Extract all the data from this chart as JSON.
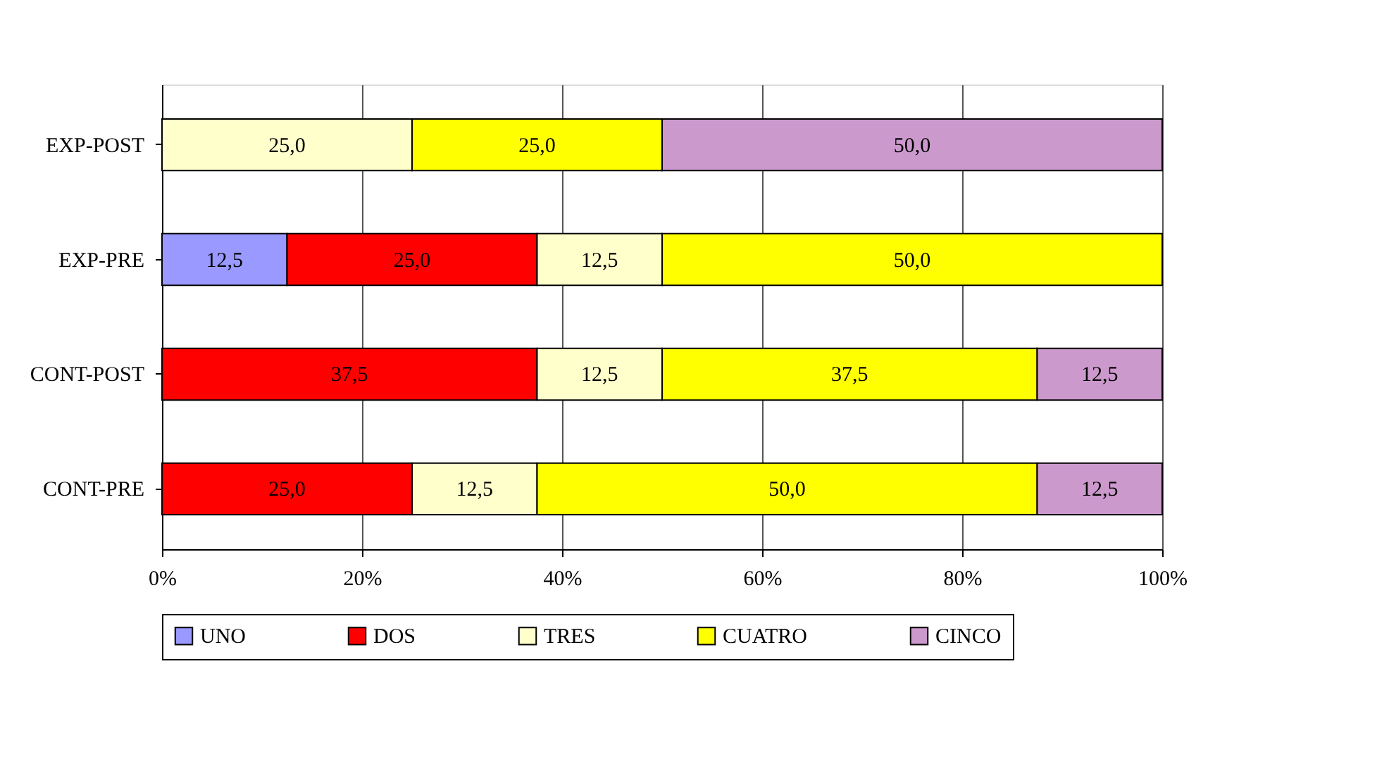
{
  "chart_data": {
    "type": "bar",
    "orientation": "horizontal",
    "stacked": true,
    "categories": [
      "EXP-POST",
      "EXP-PRE",
      "CONT-POST",
      "CONT-PRE"
    ],
    "series": [
      {
        "name": "UNO",
        "color": "#9999ff",
        "values": [
          null,
          12.5,
          null,
          null
        ],
        "value_labels": [
          null,
          "12,5",
          null,
          null
        ]
      },
      {
        "name": "DOS",
        "color": "#ff0000",
        "values": [
          null,
          25.0,
          37.5,
          25.0
        ],
        "value_labels": [
          null,
          "25,0",
          "37,5",
          "25,0"
        ]
      },
      {
        "name": "TRES",
        "color": "#ffffcc",
        "values": [
          25.0,
          12.5,
          12.5,
          12.5
        ],
        "value_labels": [
          "25,0",
          "12,5",
          "12,5",
          "12,5"
        ]
      },
      {
        "name": "CUATRO",
        "color": "#ffff00",
        "values": [
          25.0,
          50.0,
          37.5,
          50.0
        ],
        "value_labels": [
          "25,0",
          "50,0",
          "37,5",
          "50,0"
        ]
      },
      {
        "name": "CINCO",
        "color": "#cc99cc",
        "values": [
          50.0,
          null,
          12.5,
          12.5
        ],
        "value_labels": [
          "50,0",
          null,
          "12,5",
          "12,5"
        ]
      }
    ],
    "xlim": [
      0,
      100
    ],
    "xticks": [
      {
        "value": 0,
        "label": "0%"
      },
      {
        "value": 20,
        "label": "20%"
      },
      {
        "value": 40,
        "label": "40%"
      },
      {
        "value": 60,
        "label": "60%"
      },
      {
        "value": 80,
        "label": "80%"
      },
      {
        "value": 100,
        "label": "100%"
      }
    ],
    "grid": "x",
    "legend": "bottom"
  }
}
